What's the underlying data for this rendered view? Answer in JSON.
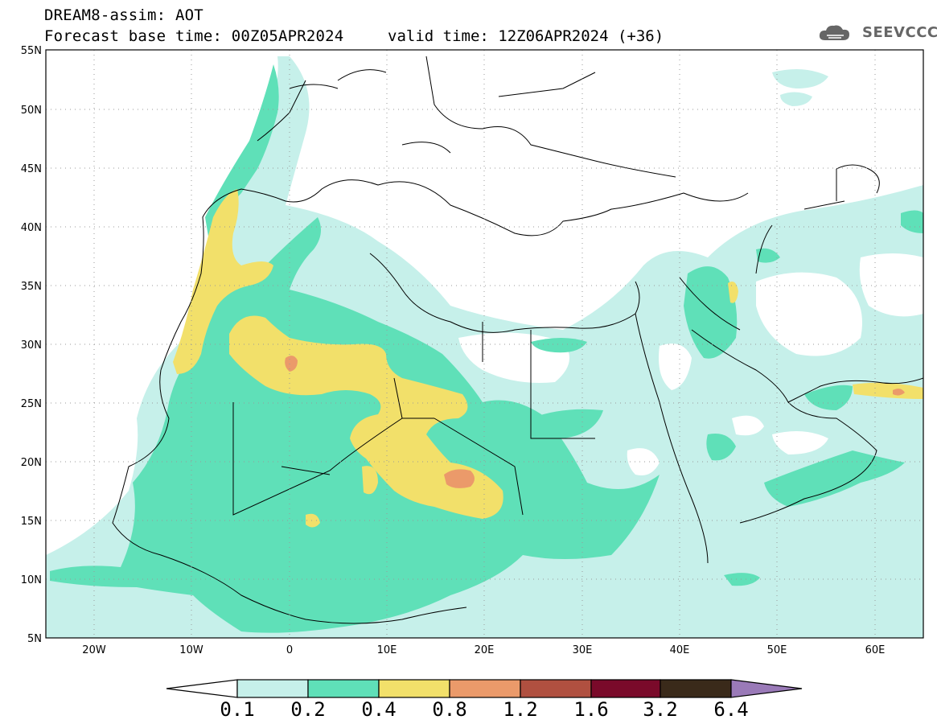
{
  "header": {
    "title": "DREAM8-assim: AOT",
    "base_time": "Forecast base time: 00Z05APR2024",
    "valid_time": "valid time: 12Z06APR2024 (+36)",
    "logo_text": "SEEVCCC"
  },
  "map": {
    "lat_labels": [
      "55N",
      "50N",
      "45N",
      "40N",
      "35N",
      "30N",
      "25N",
      "20N",
      "15N",
      "10N",
      "5N"
    ],
    "lon_labels": [
      "20W",
      "10W",
      "0",
      "10E",
      "20E",
      "30E",
      "40E",
      "50E",
      "60E"
    ]
  },
  "colorbar": {
    "labels": [
      "0.1",
      "0.2",
      "0.4",
      "0.8",
      "1.2",
      "1.6",
      "3.2",
      "6.4"
    ],
    "colors": [
      "#c6f0ea",
      "#5fe0b8",
      "#f2e06a",
      "#eb9a6a",
      "#b05040",
      "#7a0a2a",
      "#3a2a1a",
      "#9a7ab8"
    ]
  }
}
